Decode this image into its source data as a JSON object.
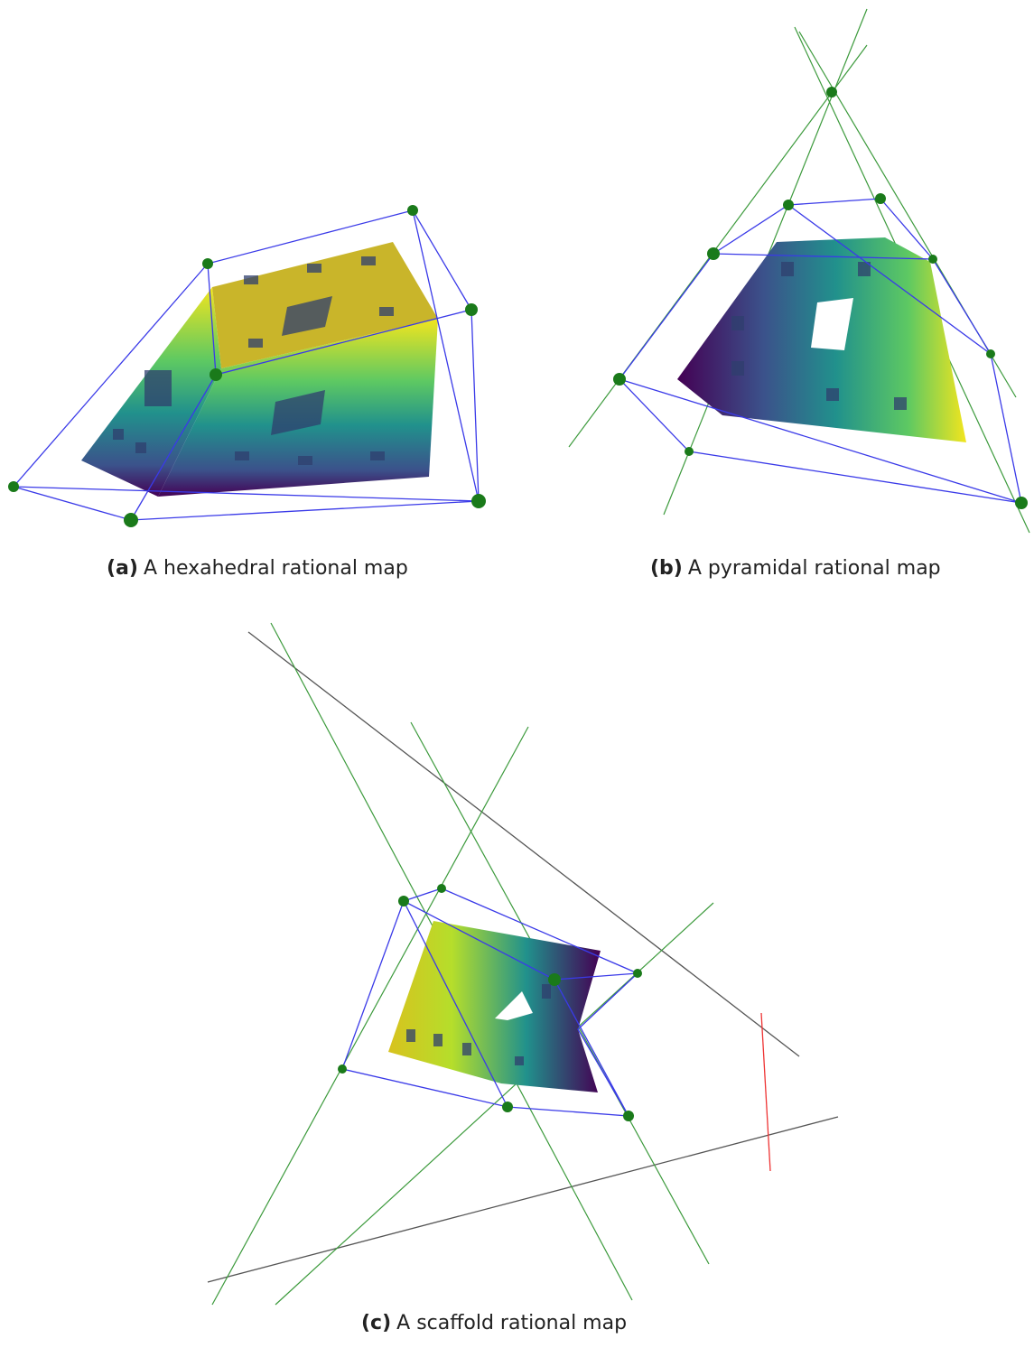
{
  "figures": [
    {
      "label": "(a)",
      "caption": "A hexahedral rational map"
    },
    {
      "label": "(b)",
      "caption": "A pyramidal rational map"
    },
    {
      "label": "(c)",
      "caption": "A scaffold rational map"
    }
  ]
}
